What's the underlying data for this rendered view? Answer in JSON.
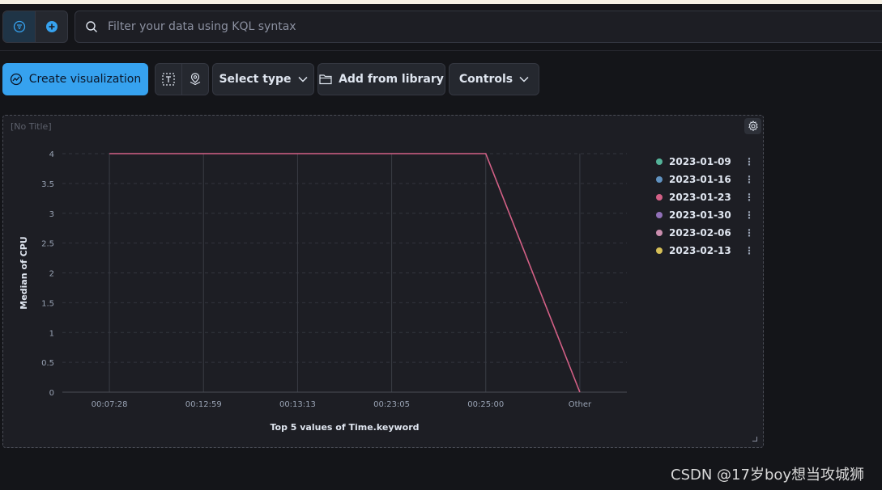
{
  "query": {
    "placeholder": "Filter your data using KQL syntax"
  },
  "toolbar": {
    "create_label": "Create visualization",
    "select_type_label": "Select type",
    "add_library_label": "Add from library",
    "controls_label": "Controls"
  },
  "panel": {
    "title": "[No Title]"
  },
  "legend": {
    "items": [
      {
        "label": "2023-01-09",
        "color": "#54b399"
      },
      {
        "label": "2023-01-16",
        "color": "#6092c0"
      },
      {
        "label": "2023-01-23",
        "color": "#d36086"
      },
      {
        "label": "2023-01-30",
        "color": "#9170b8"
      },
      {
        "label": "2023-02-06",
        "color": "#ca8eae"
      },
      {
        "label": "2023-02-13",
        "color": "#d6bf57"
      }
    ]
  },
  "chart_data": {
    "type": "line",
    "categories": [
      "00:07:28",
      "00:12:59",
      "00:13:13",
      "00:23:05",
      "00:25:00",
      "Other"
    ],
    "series": [
      {
        "name": "2023-01-23",
        "values": [
          4,
          4,
          4,
          4,
          4,
          0
        ],
        "color": "#d36086"
      }
    ],
    "title": "",
    "xlabel": "Top 5 values of Time.keyword",
    "ylabel": "Median of CPU",
    "ylim": [
      0,
      4
    ],
    "yticks": [
      "0",
      "0.5",
      "1",
      "1.5",
      "2",
      "2.5",
      "3",
      "3.5",
      "4"
    ],
    "grid": true,
    "legend_position": "right"
  },
  "watermark": "CSDN @17岁boy想当攻城狮"
}
